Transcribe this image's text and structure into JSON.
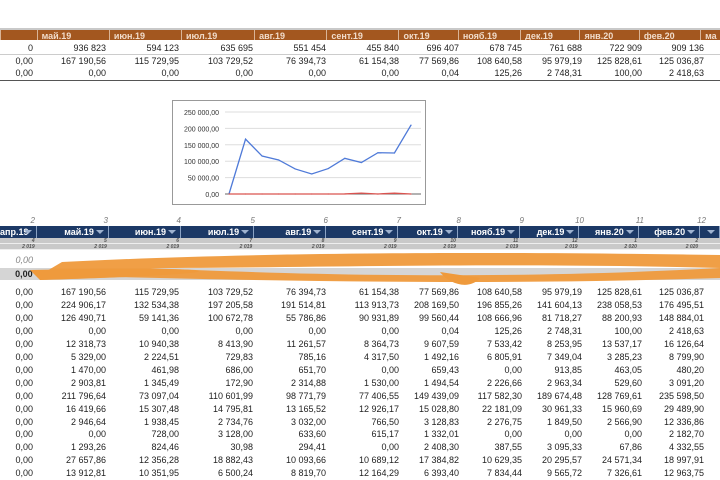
{
  "top_table": {
    "headers": [
      "",
      "май.19",
      "июн.19",
      "июл.19",
      "авг.19",
      "сент.19",
      "окт.19",
      "нояб.19",
      "дек.19",
      "янв.20",
      "фев.20",
      "ма"
    ],
    "rows": [
      [
        "0",
        "936 823",
        "594 123",
        "635 695",
        "551 454",
        "455 840",
        "696 407",
        "678 745",
        "761 688",
        "722 909",
        "909 136",
        ""
      ],
      [
        "0,00",
        "167 190,56",
        "115 729,95",
        "103 729,52",
        "76 394,73",
        "61 154,38",
        "77 569,86",
        "108 640,58",
        "95 979,19",
        "125 828,61",
        "125 036,87",
        ""
      ],
      [
        "0,00",
        "0,00",
        "0,00",
        "0,00",
        "0,00",
        "0,00",
        "0,04",
        "125,26",
        "2 748,31",
        "100,00",
        "2 418,63",
        ""
      ]
    ]
  },
  "chart_data": {
    "type": "line",
    "title": "",
    "y_ticks": [
      "250 000,00",
      "200 000,00",
      "150 000,00",
      "100 000,00",
      "50 000,00",
      "0,00"
    ],
    "ylim": [
      0,
      250000
    ],
    "grid": true,
    "series": [
      {
        "name": "series-blue",
        "color": "#4f7ad8",
        "values": [
          0,
          167190.56,
          115729.95,
          103729.52,
          76394.73,
          61154.38,
          77569.86,
          108640.58,
          95979.19,
          125828.61,
          125036.87,
          210000
        ]
      },
      {
        "name": "series-red",
        "color": "#d9534f",
        "values": [
          0,
          0,
          0,
          0,
          0,
          0,
          0.04,
          125.26,
          2748.31,
          100,
          2418.63,
          0
        ]
      }
    ]
  },
  "main_table": {
    "col_index": [
      "2",
      "3",
      "4",
      "5",
      "6",
      "7",
      "8",
      "9",
      "10",
      "11",
      "12",
      ""
    ],
    "headers": [
      "апр.19",
      "май.19",
      "июн.19",
      "июл.19",
      "авг.19",
      "сент.19",
      "окт.19",
      "нояб.19",
      "дек.19",
      "янв.20",
      "фев.20",
      ""
    ],
    "months": [
      "4",
      "5",
      "6",
      "7",
      "8",
      "9",
      "10",
      "11",
      "12",
      "1",
      "2",
      ""
    ],
    "years": [
      "2 019",
      "2 019",
      "2 019",
      "2 019",
      "2 019",
      "2 019",
      "2 019",
      "2 019",
      "2 019",
      "2 020",
      "2 020",
      ""
    ],
    "row_italic": [
      "0,00",
      "",
      "",
      "",
      "",
      "",
      "",
      "",
      "",
      "",
      "",
      ""
    ],
    "row_total": [
      "0,00",
      "",
      "",
      "",
      "",
      "",
      "",
      "",
      "",
      "",
      "",
      ""
    ],
    "rows": [
      [
        "0,00",
        "167 190,56",
        "115 729,95",
        "103 729,52",
        "76 394,73",
        "61 154,38",
        "77 569,86",
        "108 640,58",
        "95 979,19",
        "125 828,61",
        "125 036,87",
        ""
      ],
      [
        "0,00",
        "224 906,17",
        "132 534,38",
        "197 205,58",
        "191 514,81",
        "113 913,73",
        "208 169,50",
        "196 855,26",
        "141 604,13",
        "238 058,53",
        "176 495,51",
        ""
      ],
      [
        "0,00",
        "126 490,71",
        "59 141,36",
        "100 672,78",
        "55 786,86",
        "90 931,89",
        "99 560,44",
        "108 666,96",
        "81 718,27",
        "88 200,93",
        "148 884,01",
        ""
      ],
      [
        "0,00",
        "0,00",
        "0,00",
        "0,00",
        "0,00",
        "0,00",
        "0,04",
        "125,26",
        "2 748,31",
        "100,00",
        "2 418,63",
        ""
      ],
      [
        "0,00",
        "12 318,73",
        "10 940,38",
        "8 413,90",
        "11 261,57",
        "8 364,73",
        "9 607,59",
        "7 533,42",
        "8 253,95",
        "13 537,17",
        "16 126,64",
        ""
      ],
      [
        "0,00",
        "5 329,00",
        "2 224,51",
        "729,83",
        "785,16",
        "4 317,50",
        "1 492,16",
        "6 805,91",
        "7 349,04",
        "3 285,23",
        "8 799,90",
        ""
      ],
      [
        "0,00",
        "1 470,00",
        "461,98",
        "686,00",
        "651,70",
        "0,00",
        "659,43",
        "0,00",
        "913,85",
        "463,05",
        "480,20",
        ""
      ],
      [
        "0,00",
        "2 903,81",
        "1 345,49",
        "172,90",
        "2 314,88",
        "1 530,00",
        "1 494,54",
        "2 226,66",
        "2 963,34",
        "529,60",
        "3 091,20",
        ""
      ],
      [
        "0,00",
        "211 796,64",
        "73 097,04",
        "110 601,99",
        "98 771,79",
        "77 406,55",
        "149 439,09",
        "117 582,30",
        "189 674,48",
        "128 769,61",
        "235 598,50",
        ""
      ],
      [
        "0,00",
        "16 419,66",
        "15 307,48",
        "14 795,81",
        "13 165,52",
        "12 926,17",
        "15 028,80",
        "22 181,09",
        "30 961,33",
        "15 960,69",
        "29 489,90",
        ""
      ],
      [
        "0,00",
        "2 946,64",
        "1 938,45",
        "2 734,76",
        "3 032,00",
        "766,50",
        "3 128,83",
        "2 276,75",
        "1 849,50",
        "2 566,90",
        "12 336,86",
        ""
      ],
      [
        "0,00",
        "0,00",
        "728,00",
        "3 128,00",
        "633,60",
        "615,17",
        "1 332,01",
        "0,00",
        "0,00",
        "0,00",
        "2 182,70",
        ""
      ],
      [
        "0,00",
        "1 293,26",
        "824,46",
        "30,98",
        "294,41",
        "0,00",
        "2 408,30",
        "387,55",
        "3 095,33",
        "67,86",
        "4 332,55",
        ""
      ],
      [
        "0,00",
        "27 657,86",
        "12 356,28",
        "18 882,43",
        "10 093,66",
        "10 689,12",
        "17 384,82",
        "10 629,35",
        "20 295,57",
        "24 571,34",
        "18 997,91",
        ""
      ],
      [
        "0,00",
        "13 912,81",
        "10 351,95",
        "6 500,24",
        "8 819,70",
        "12 164,29",
        "6 393,40",
        "7 834,44",
        "9 565,72",
        "7 326,61",
        "12 963,75",
        ""
      ]
    ]
  }
}
